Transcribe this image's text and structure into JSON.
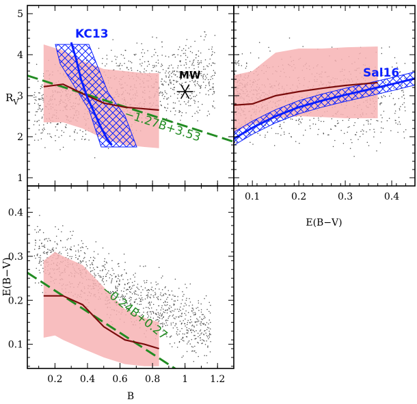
{
  "colors": {
    "band": "#f7b3b4",
    "median": "#7a0c0c",
    "fit": "#228b22",
    "relation": "#0a1fff",
    "points": "#4a4a4a",
    "mw_marker": "#000000"
  },
  "chart_data": [
    {
      "id": "rv_vs_b",
      "type": "scatter",
      "xlabel": "",
      "ylabel": "R_V",
      "xlim": [
        0.03,
        1.3
      ],
      "ylim": [
        0.8,
        5.2
      ],
      "yticks": [
        1,
        2,
        3,
        4,
        5
      ],
      "band": {
        "x": [
          0.13,
          0.25,
          0.37,
          0.5,
          0.63,
          0.75,
          0.84
        ],
        "upper": [
          4.25,
          4.1,
          3.85,
          3.65,
          3.6,
          3.55,
          3.55
        ],
        "lower": [
          2.35,
          2.35,
          2.2,
          1.95,
          1.8,
          1.75,
          1.72
        ]
      },
      "median": {
        "x": [
          0.13,
          0.25,
          0.37,
          0.5,
          0.63,
          0.75,
          0.84
        ],
        "y": [
          3.22,
          3.28,
          3.05,
          2.82,
          2.72,
          2.68,
          2.65
        ]
      },
      "fit": {
        "label": "−1.27B+3.53",
        "slope": -1.27,
        "intercept": 3.53,
        "x_range": [
          0.03,
          1.3
        ]
      },
      "relation": {
        "name": "KC13",
        "x": [
          0.3,
          0.33,
          0.36,
          0.4,
          0.44,
          0.48,
          0.52,
          0.55
        ],
        "y": [
          4.3,
          3.9,
          3.4,
          2.95,
          2.6,
          2.25,
          1.95,
          1.8
        ]
      },
      "mw_point": {
        "label": "MW",
        "x": 1.0,
        "y": 3.1
      }
    },
    {
      "id": "rv_vs_ebv",
      "type": "scatter",
      "xlabel": "E(B−V)",
      "ylabel": "",
      "xlim": [
        0.06,
        0.45
      ],
      "ylim": [
        0.8,
        5.2
      ],
      "xticks": [
        0.1,
        0.2,
        0.3,
        0.4
      ],
      "band": {
        "x": [
          0.06,
          0.1,
          0.15,
          0.2,
          0.25,
          0.3,
          0.37
        ],
        "upper": [
          3.5,
          3.6,
          4.05,
          4.15,
          4.15,
          4.18,
          4.2
        ],
        "lower": [
          2.1,
          2.3,
          2.45,
          2.5,
          2.48,
          2.45,
          2.45
        ]
      },
      "median": {
        "x": [
          0.06,
          0.1,
          0.15,
          0.2,
          0.25,
          0.3,
          0.37
        ],
        "y": [
          2.77,
          2.8,
          3.0,
          3.1,
          3.18,
          3.25,
          3.32
        ]
      },
      "relation": {
        "name": "Sal16",
        "x": [
          0.06,
          0.1,
          0.15,
          0.2,
          0.25,
          0.3,
          0.35,
          0.4,
          0.45
        ],
        "y": [
          1.95,
          2.22,
          2.5,
          2.72,
          2.88,
          3.02,
          3.15,
          3.28,
          3.42
        ]
      }
    },
    {
      "id": "ebv_vs_b",
      "type": "scatter",
      "xlabel": "B",
      "ylabel": "E(B−V)",
      "xlim": [
        0.03,
        1.3
      ],
      "ylim": [
        0.045,
        0.46
      ],
      "xticks": [
        0.2,
        0.4,
        0.6,
        0.8,
        1,
        1.2
      ],
      "yticks": [
        0.1,
        0.2,
        0.3,
        0.4
      ],
      "band": {
        "x": [
          0.13,
          0.2,
          0.25,
          0.37,
          0.5,
          0.63,
          0.75,
          0.84
        ],
        "upper": [
          0.29,
          0.31,
          0.3,
          0.28,
          0.23,
          0.18,
          0.16,
          0.15
        ],
        "lower": [
          0.115,
          0.12,
          0.11,
          0.09,
          0.07,
          0.055,
          0.05,
          0.05
        ]
      },
      "median": {
        "x": [
          0.13,
          0.25,
          0.37,
          0.5,
          0.63,
          0.75,
          0.84
        ],
        "y": [
          0.21,
          0.21,
          0.19,
          0.14,
          0.11,
          0.1,
          0.09
        ]
      },
      "fit": {
        "label": "−0.24B+0.27",
        "slope": -0.24,
        "intercept": 0.27,
        "x_range": [
          0.03,
          0.95
        ]
      }
    }
  ]
}
